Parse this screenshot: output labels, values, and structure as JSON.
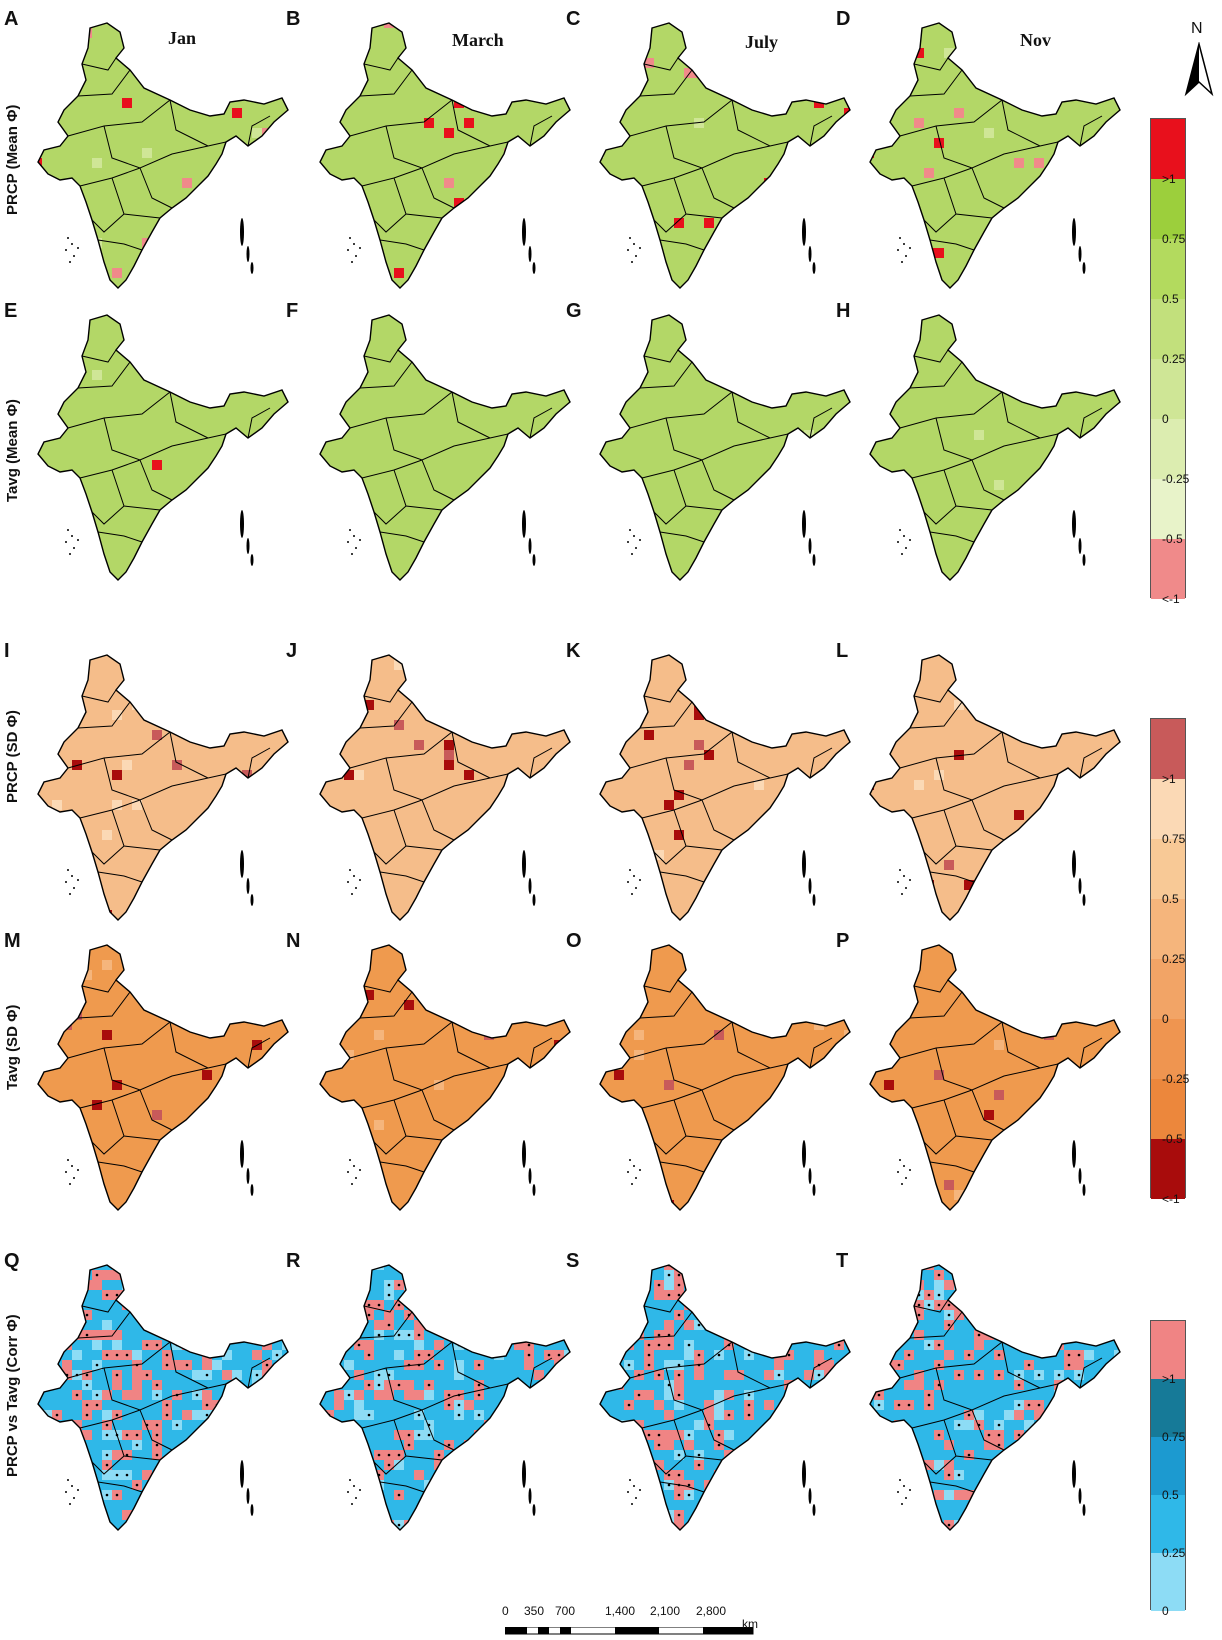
{
  "columns": [
    "Jan",
    "March",
    "July",
    "Nov"
  ],
  "panel_letters": [
    "A",
    "B",
    "C",
    "D",
    "E",
    "F",
    "G",
    "H",
    "I",
    "J",
    "K",
    "L",
    "M",
    "N",
    "O",
    "P",
    "Q",
    "R",
    "S",
    "T"
  ],
  "row_labels": [
    "PRCP (Mean Φ)",
    "Tavg (Mean Φ)",
    "PRCP (SD Φ)",
    "Tavg (SD Φ)",
    "PRCP vs Tavg (Corr Φ)"
  ],
  "north_label": "N",
  "legends": [
    {
      "name": "mean",
      "labels": [
        ">1",
        "0.75",
        "0.5",
        "0.25",
        "0",
        "-0.25",
        "-0.5",
        "<-1"
      ],
      "colors": [
        "#e8101c",
        "#9ccf3c",
        "#b3da5e",
        "#c2e07c",
        "#cfe696",
        "#dcedb0",
        "#e8f3c9",
        "#f08a8a"
      ]
    },
    {
      "name": "sd",
      "labels": [
        ">1",
        "0.75",
        "0.5",
        "0.25",
        "0",
        "-0.25",
        "-0.5",
        "<-1"
      ],
      "colors": [
        "#c85a5a",
        "#fbd9b5",
        "#f8c996",
        "#f5b57c",
        "#f2a466",
        "#ef9550",
        "#ec873c",
        "#a80c0c"
      ]
    },
    {
      "name": "corr",
      "labels": [
        ">1",
        "0.75",
        "0.5",
        "0.25",
        "0"
      ],
      "colors": [
        "#f08484",
        "#167a98",
        "#1c9ad0",
        "#2fb8e8",
        "#8ddcf5"
      ]
    }
  ],
  "scale_bar": {
    "ticks": [
      "0",
      "350",
      "700",
      "1,400",
      "2,100",
      "2,800"
    ],
    "unit": "km"
  },
  "map_styles": [
    {
      "base": "#b3d767",
      "hot": "#e8101c",
      "pink": "#f08a8a",
      "light": "#cfe696"
    },
    {
      "base": "#b3d767",
      "hot": "#e8101c",
      "pink": "#f08a8a",
      "light": "#cfe696"
    },
    {
      "base": "#f5bd8a",
      "hot": "#a80c0c",
      "pink": "#c85a5a",
      "light": "#fbd9b5"
    },
    {
      "base": "#ef9a4e",
      "hot": "#a80c0c",
      "pink": "#c85a5a",
      "light": "#f5b57c"
    },
    {
      "base": "#2fb8e8",
      "hot": "#f08484",
      "pink": "#f08484",
      "light": "#8ddcf5"
    }
  ]
}
